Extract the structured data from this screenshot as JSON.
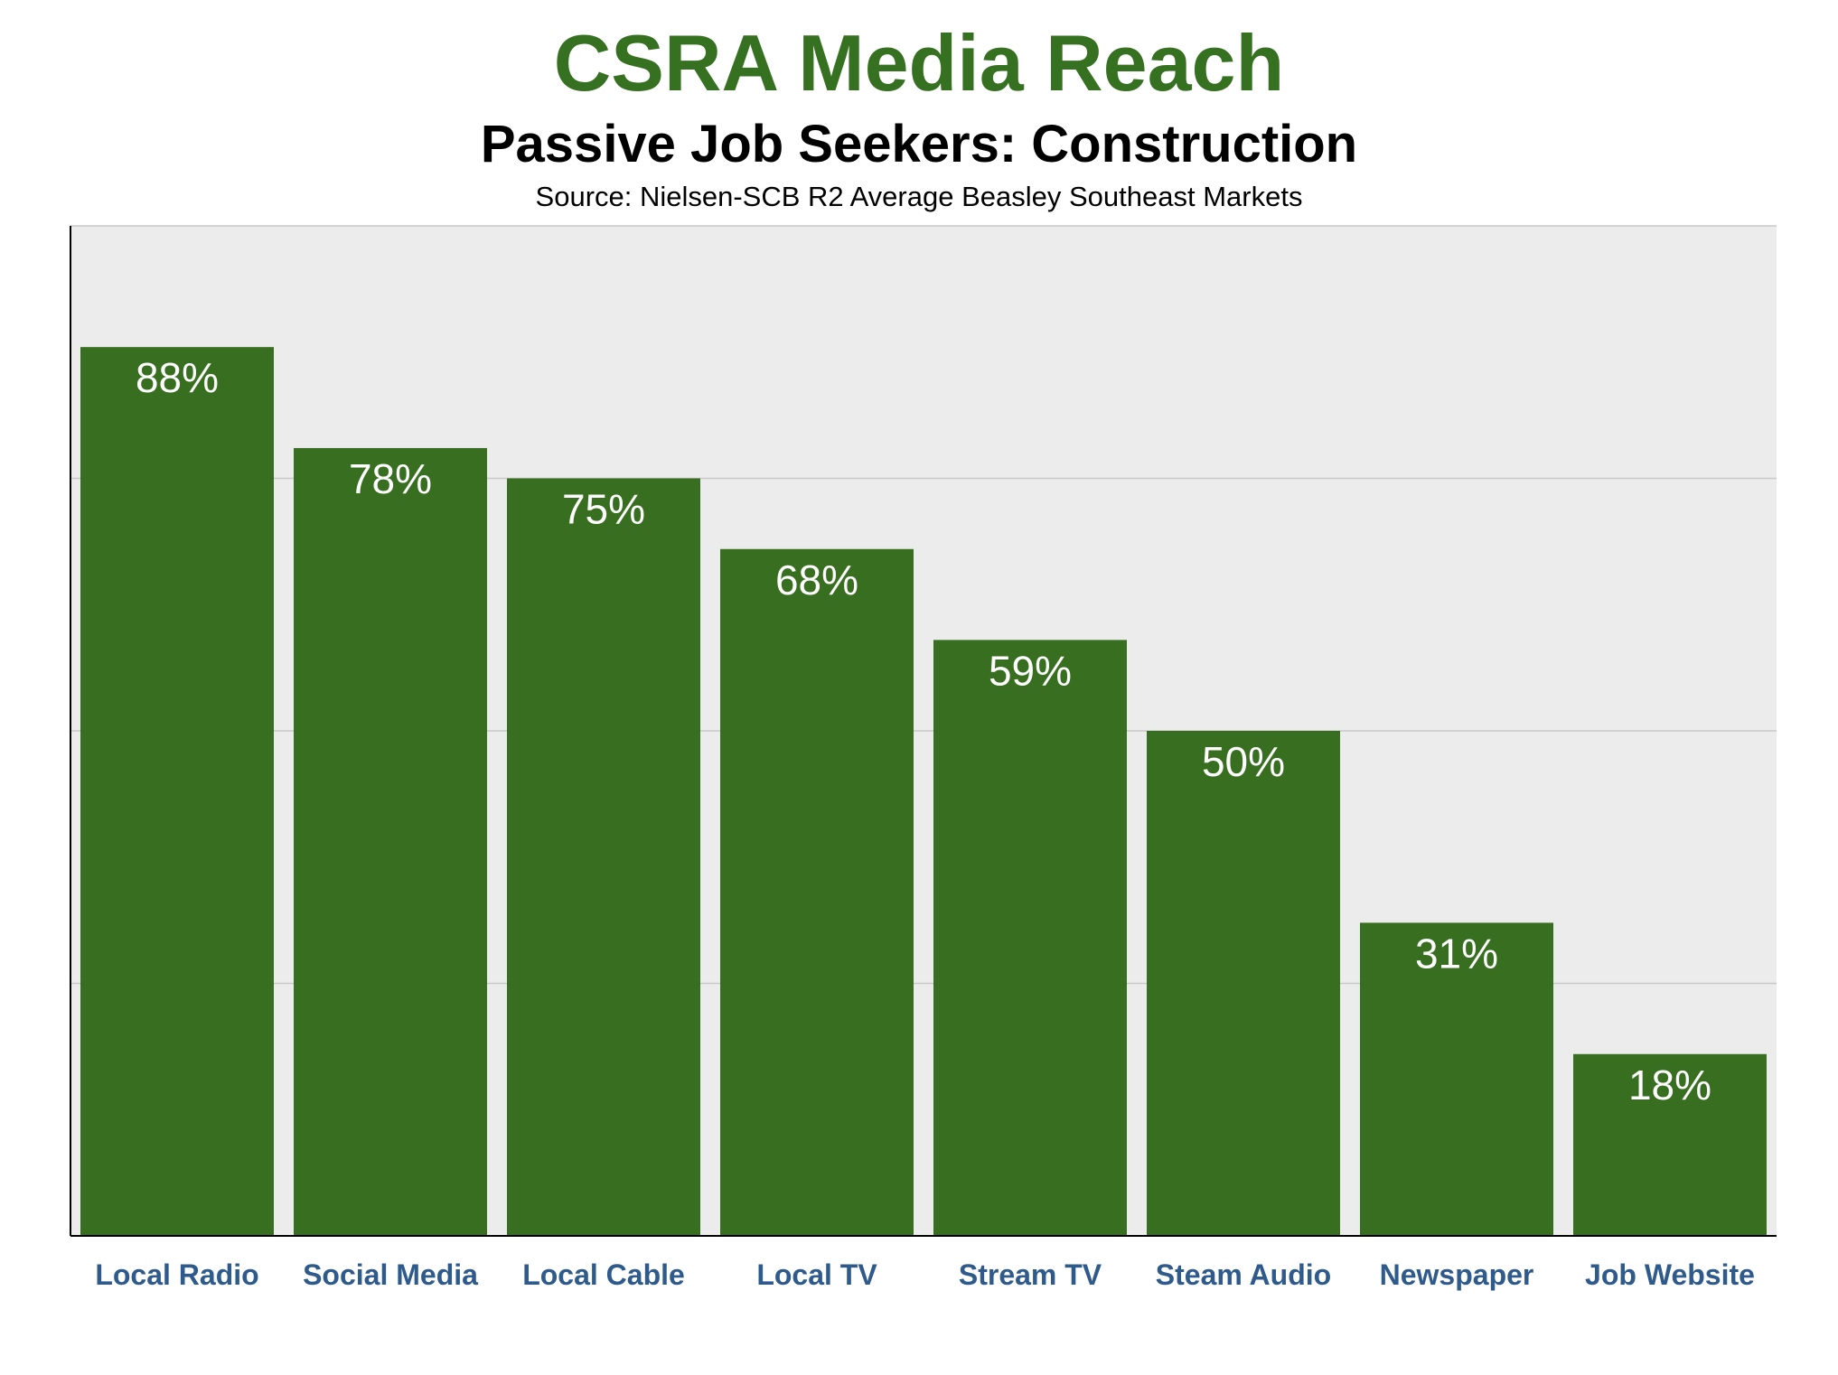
{
  "chart_data": {
    "type": "bar",
    "title": "CSRA Media Reach",
    "subtitle": "Passive Job Seekers: Construction",
    "source": "Source: Nielsen-SCB R2 Average Beasley Southeast Markets",
    "categories": [
      "Local Radio",
      "Social Media",
      "Local Cable",
      "Local TV",
      "Stream TV",
      "Steam Audio",
      "Newspaper",
      "Job Website"
    ],
    "values": [
      88,
      78,
      75,
      68,
      59,
      50,
      31,
      18
    ],
    "value_labels": [
      "88%",
      "78%",
      "75%",
      "68%",
      "59%",
      "50%",
      "31%",
      "18%"
    ],
    "ylim": [
      0,
      100
    ],
    "grid": true,
    "legend": "none",
    "colors": {
      "bar": "#376e1f",
      "title": "#367021",
      "category_label": "#2e5a8c",
      "plot_background": "#ececec",
      "gridline": "#c8c8c8"
    }
  }
}
